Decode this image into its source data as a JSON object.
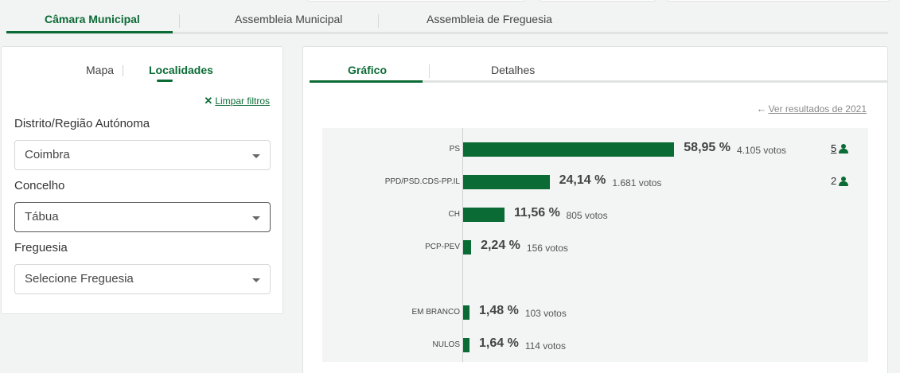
{
  "main_tabs": [
    {
      "label": "Câmara Municipal",
      "active": true
    },
    {
      "label": "Assembleia Municipal",
      "active": false
    },
    {
      "label": "Assembleia de Freguesia",
      "active": false
    }
  ],
  "filters": {
    "tabs": [
      {
        "label": "Mapa",
        "active": false
      },
      {
        "label": "Localidades",
        "active": true
      }
    ],
    "clear_label": "Limpar filtros",
    "district": {
      "label": "Distrito/Região Autónoma",
      "value": "Coimbra"
    },
    "municipality": {
      "label": "Concelho",
      "value": "Tábua"
    },
    "parish": {
      "label": "Freguesia",
      "value": "Selecione Freguesia"
    }
  },
  "results": {
    "tabs": [
      {
        "label": "Gráfico",
        "active": true
      },
      {
        "label": "Detalhes",
        "active": false
      }
    ],
    "previous_link": "Ver resultados de 2021"
  },
  "colors": {
    "accent": "#0b6b35"
  },
  "chart_data": {
    "type": "bar",
    "orientation": "horizontal",
    "categories": [
      "PS",
      "PPD/PSD.CDS-PP.IL",
      "CH",
      "PCP-PEV",
      "EM BRANCO",
      "NULOS"
    ],
    "values": [
      58.95,
      24.14,
      11.56,
      2.24,
      1.48,
      1.64
    ],
    "percent_labels": [
      "58,95 %",
      "24,14 %",
      "11,56 %",
      "2,24 %",
      "1,48 %",
      "1,64 %"
    ],
    "vote_labels": [
      "4.105 votos",
      "1.681 votos",
      "805 votos",
      "156 votos",
      "103 votos",
      "114 votos"
    ],
    "seats": [
      "5",
      "2",
      "",
      "",
      "",
      ""
    ],
    "xlim": [
      0,
      100
    ]
  }
}
